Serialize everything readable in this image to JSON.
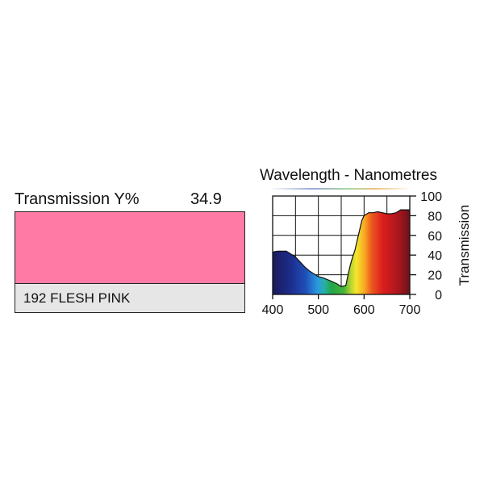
{
  "filter": {
    "transmission_label": "Transmission Y%",
    "transmission_value": "34.9",
    "name": "192 FLESH PINK",
    "swatch_color": "#ff7aa5",
    "name_box_color": "#e6e6e7"
  },
  "chart_data": {
    "type": "area",
    "title": "Wavelength - Nanometres",
    "xlabel": "",
    "ylabel": "Transmission",
    "xlim": [
      400,
      700
    ],
    "ylim": [
      0,
      100
    ],
    "x_ticks": [
      "400",
      "500",
      "600",
      "700"
    ],
    "y_ticks": [
      "0",
      "20",
      "40",
      "60",
      "80",
      "100"
    ],
    "grid": true,
    "fill": "visible-spectrum gradient",
    "series": [
      {
        "x": [
          400,
          410,
          420,
          430,
          440,
          450,
          460,
          470,
          480,
          490,
          500,
          510,
          520,
          530,
          540,
          550,
          560,
          565,
          570,
          575,
          580,
          585,
          590,
          595,
          600,
          610,
          620,
          630,
          640,
          650,
          660,
          670,
          680,
          690,
          700
        ],
        "y": [
          43,
          44,
          44,
          44,
          41,
          38,
          33,
          28,
          24,
          21,
          18,
          17,
          15,
          13,
          11,
          8,
          9,
          20,
          30,
          38,
          45,
          55,
          65,
          75,
          80,
          83,
          83,
          84,
          83,
          82,
          82,
          83,
          86,
          86,
          86
        ]
      }
    ]
  }
}
